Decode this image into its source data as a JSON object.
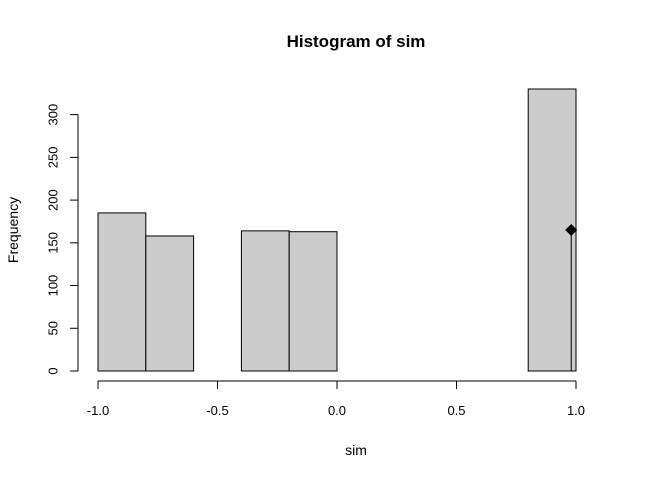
{
  "chart_data": {
    "type": "bar",
    "title": "Histogram of sim",
    "xlabel": "sim",
    "ylabel": "Frequency",
    "xlim": [
      -1.0,
      1.0
    ],
    "ylim": [
      0,
      330
    ],
    "x_ticks": [
      -1.0,
      -0.5,
      0.0,
      0.5,
      1.0
    ],
    "x_tick_labels": [
      "-1.0",
      "-0.5",
      "0.0",
      "0.5",
      "1.0"
    ],
    "y_ticks": [
      0,
      50,
      100,
      150,
      200,
      250,
      300
    ],
    "y_tick_labels": [
      "0",
      "50",
      "100",
      "150",
      "200",
      "250",
      "300"
    ],
    "bins": [
      {
        "x0": -1.0,
        "x1": -0.8,
        "count": 185
      },
      {
        "x0": -0.8,
        "x1": -0.6,
        "count": 158
      },
      {
        "x0": -0.6,
        "x1": -0.4,
        "count": 0
      },
      {
        "x0": -0.4,
        "x1": -0.2,
        "count": 164
      },
      {
        "x0": -0.2,
        "x1": 0.0,
        "count": 163
      },
      {
        "x0": 0.0,
        "x1": 0.2,
        "count": 0
      },
      {
        "x0": 0.2,
        "x1": 0.4,
        "count": 0
      },
      {
        "x0": 0.4,
        "x1": 0.6,
        "count": 0
      },
      {
        "x0": 0.6,
        "x1": 0.8,
        "count": 0
      },
      {
        "x0": 0.8,
        "x1": 1.0,
        "count": 330
      }
    ],
    "marker": {
      "x": 0.98,
      "y": 165,
      "shape": "diamond"
    },
    "bar_fill": "#cccccc",
    "grid": false
  }
}
